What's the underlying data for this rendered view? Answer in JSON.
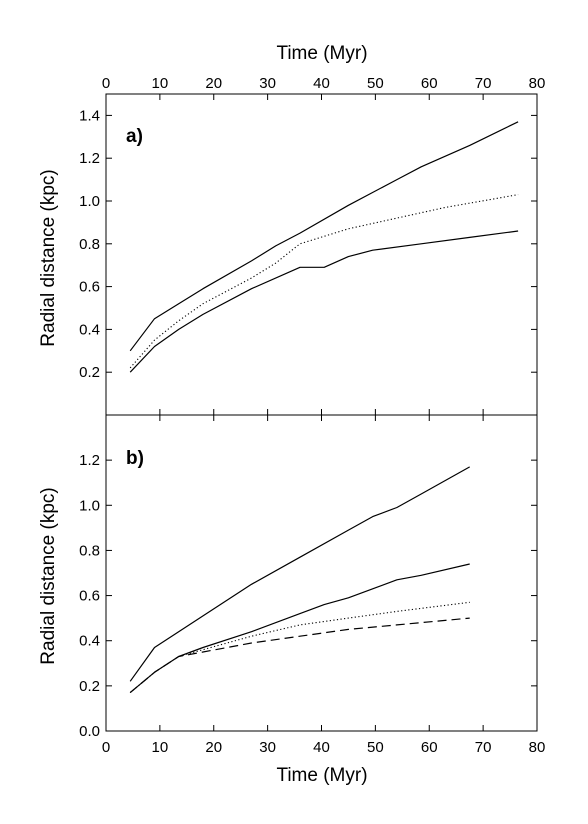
{
  "chart_data": [
    {
      "panel": "a)",
      "type": "line",
      "xlabel_top": "Time (Myr)",
      "ylabel": "Radial distance (kpc)",
      "xlim": [
        0,
        80
      ],
      "ylim": [
        0,
        1.5
      ],
      "xticks": [
        "0",
        "10",
        "20",
        "30",
        "40",
        "50",
        "60",
        "70",
        "80"
      ],
      "yticks": [
        "0.2",
        "0.4",
        "0.6",
        "0.8",
        "1.0",
        "1.2",
        "1.4"
      ],
      "series": [
        {
          "style": "solid",
          "x": [
            4.5,
            9,
            13.5,
            18,
            27,
            31.5,
            36,
            45,
            54,
            58.5,
            67.5,
            76.5
          ],
          "y": [
            0.3,
            0.45,
            0.52,
            0.59,
            0.72,
            0.79,
            0.85,
            0.98,
            1.1,
            1.16,
            1.26,
            1.37
          ]
        },
        {
          "style": "dotted",
          "x": [
            4.5,
            9,
            13.5,
            18,
            27,
            31.5,
            36,
            45,
            54,
            63,
            72,
            76.5
          ],
          "y": [
            0.22,
            0.35,
            0.44,
            0.52,
            0.64,
            0.71,
            0.8,
            0.87,
            0.92,
            0.97,
            1.01,
            1.03
          ]
        },
        {
          "style": "solid",
          "x": [
            4.5,
            9,
            13.5,
            18,
            27,
            36,
            40.5,
            45,
            49.5,
            58.5,
            67.5,
            76.5
          ],
          "y": [
            0.2,
            0.32,
            0.4,
            0.47,
            0.59,
            0.69,
            0.69,
            0.74,
            0.77,
            0.8,
            0.83,
            0.86
          ]
        }
      ]
    },
    {
      "panel": "b)",
      "type": "line",
      "xlabel": "Time (Myr)",
      "ylabel": "Radial distance (kpc)",
      "xlim": [
        0,
        80
      ],
      "ylim": [
        0,
        1.4
      ],
      "xticks": [
        "0",
        "10",
        "20",
        "30",
        "40",
        "50",
        "60",
        "70",
        "80"
      ],
      "yticks": [
        "0.0",
        "0.2",
        "0.4",
        "0.6",
        "0.8",
        "1.0",
        "1.2"
      ],
      "series": [
        {
          "style": "solid",
          "x": [
            4.5,
            9,
            18,
            27,
            36,
            45,
            49.5,
            54,
            58.5,
            67.5
          ],
          "y": [
            0.22,
            0.37,
            0.51,
            0.65,
            0.77,
            0.89,
            0.95,
            0.99,
            1.05,
            1.17
          ]
        },
        {
          "style": "solid",
          "x": [
            4.5,
            9,
            13.5,
            18,
            27,
            36,
            40.5,
            45,
            49.5,
            54,
            58.5,
            67.5
          ],
          "y": [
            0.17,
            0.26,
            0.33,
            0.37,
            0.44,
            0.52,
            0.56,
            0.59,
            0.63,
            0.67,
            0.69,
            0.74
          ]
        },
        {
          "style": "dotted",
          "x": [
            4.5,
            9,
            13.5,
            18,
            27,
            36,
            45,
            54,
            67.5
          ],
          "y": [
            0.17,
            0.26,
            0.33,
            0.36,
            0.42,
            0.47,
            0.5,
            0.53,
            0.57
          ]
        },
        {
          "style": "dashed",
          "x": [
            4.5,
            9,
            13.5,
            18,
            27,
            36,
            45,
            54,
            67.5
          ],
          "y": [
            0.17,
            0.26,
            0.33,
            0.35,
            0.39,
            0.42,
            0.45,
            0.47,
            0.5
          ]
        }
      ]
    }
  ]
}
